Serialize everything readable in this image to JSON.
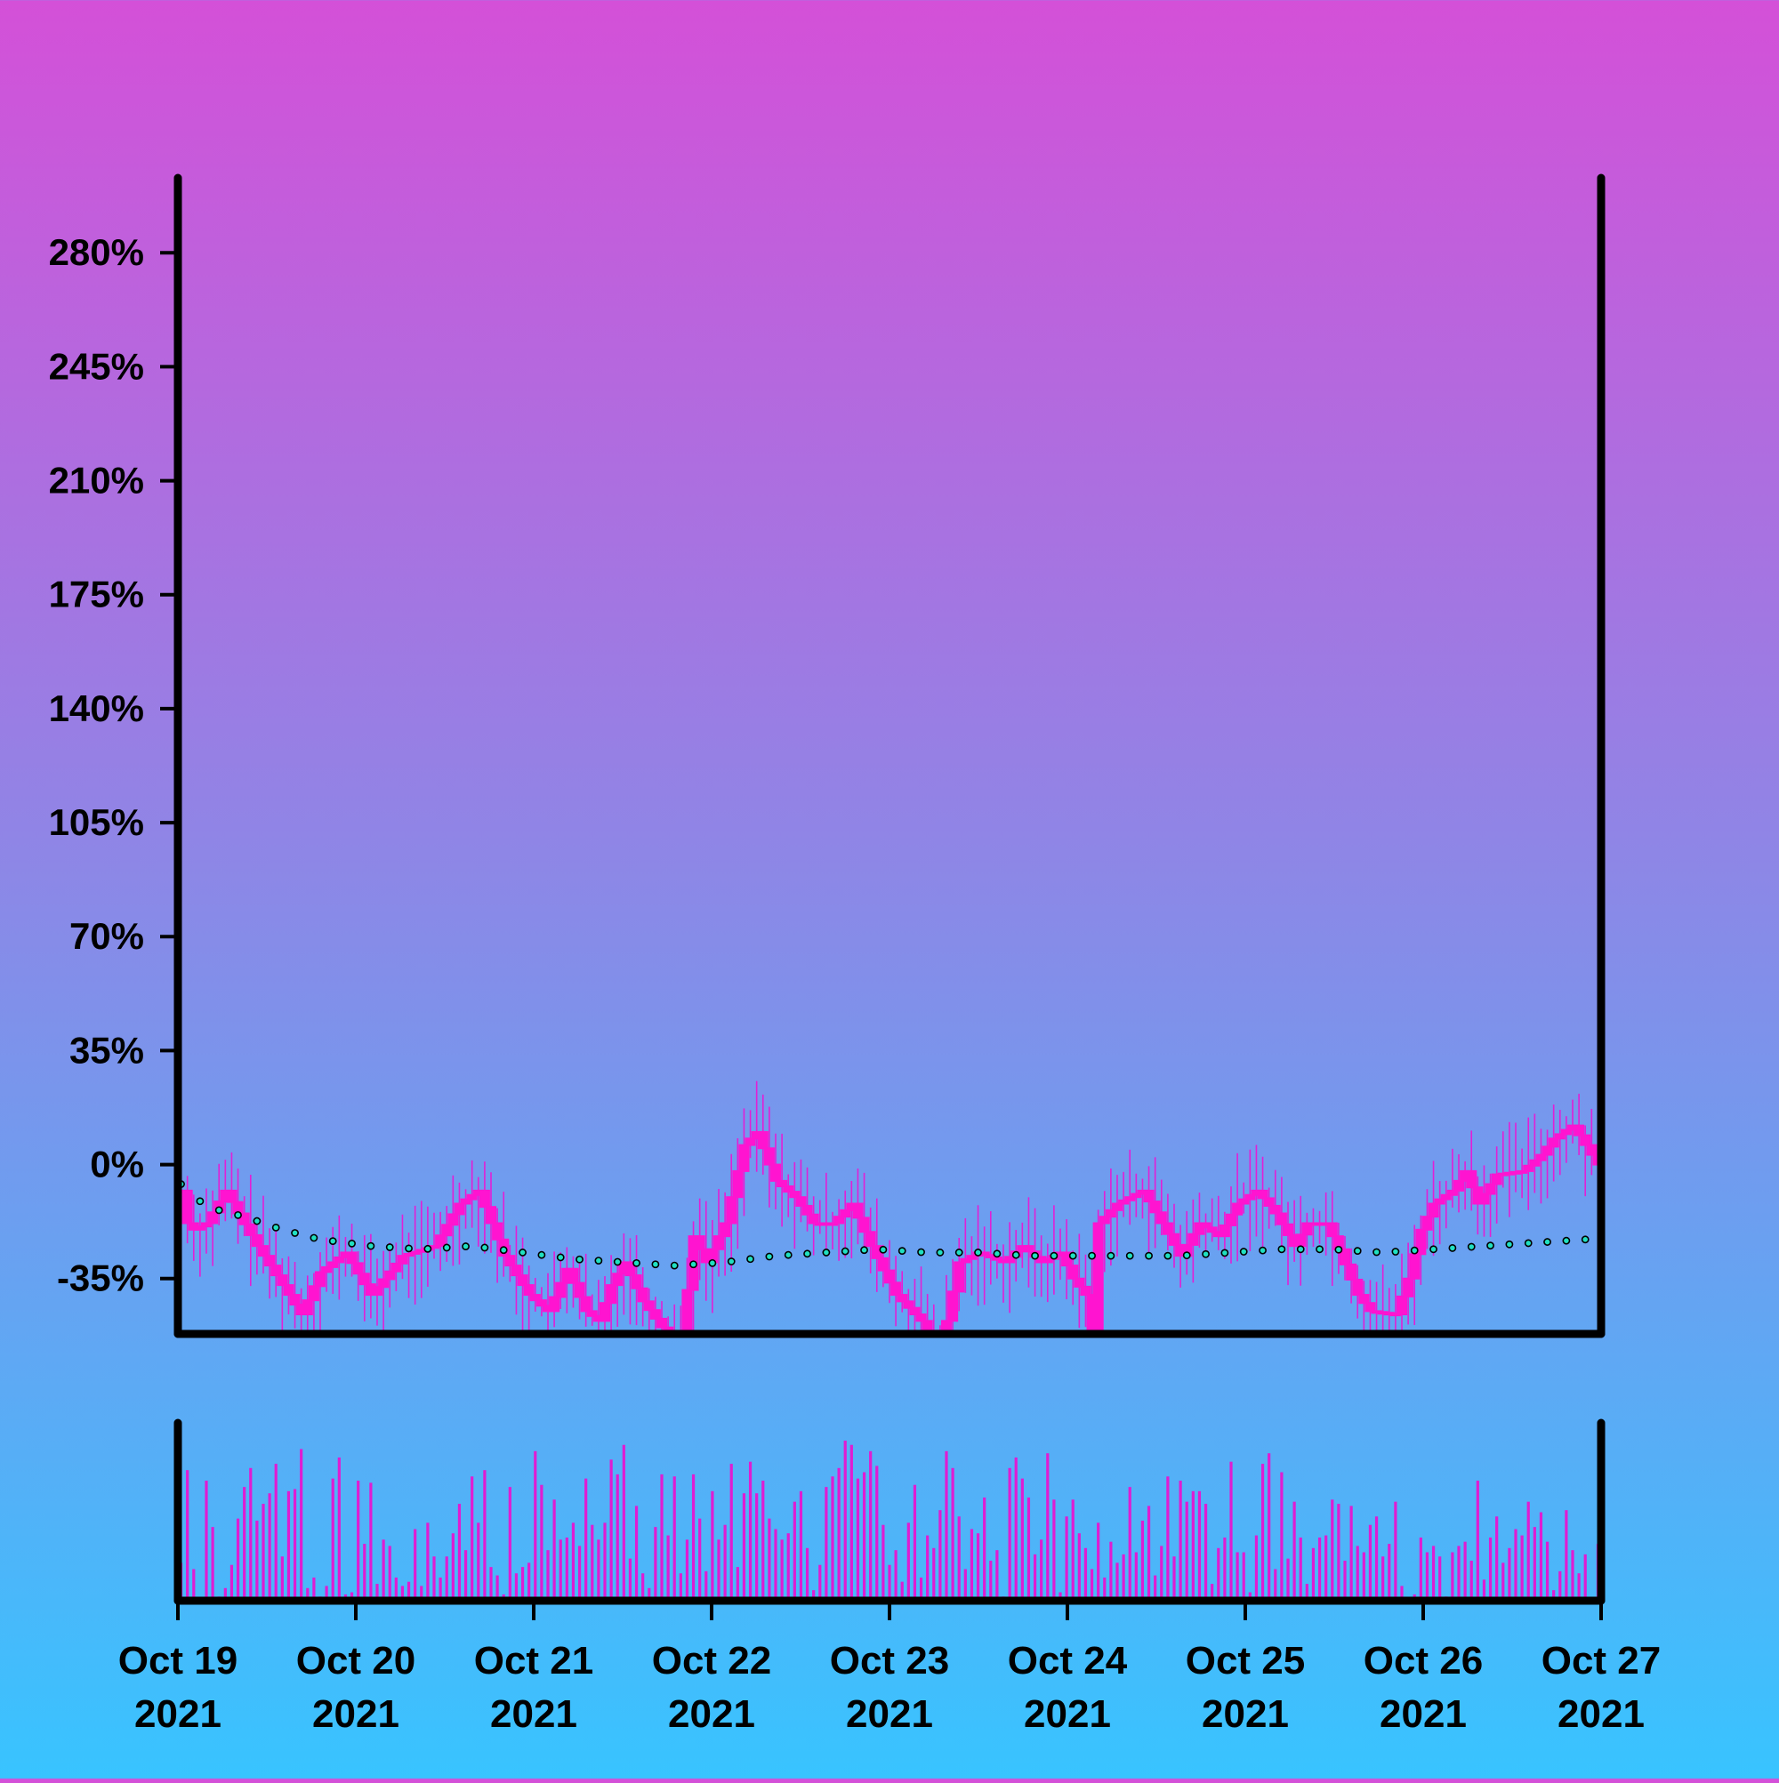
{
  "chart_data": {
    "type": "candlestick",
    "x_start": "2021-10-19",
    "x_end": "2021-10-27",
    "bars_per_day": 20,
    "y_axis": {
      "ylim": [
        -52,
        303
      ],
      "ticks": [
        -35,
        0,
        35,
        70,
        105,
        140,
        175,
        210,
        245,
        280
      ],
      "tick_labels": [
        "-35%",
        "0%",
        "35%",
        "70%",
        "105%",
        "140%",
        "175%",
        "210%",
        "245%",
        "280%"
      ]
    },
    "x_axis": {
      "ticks": [
        {
          "label_top": "Oct 19",
          "label_bottom": "2021"
        },
        {
          "label_top": "Oct 20",
          "label_bottom": "2021"
        },
        {
          "label_top": "Oct 21",
          "label_bottom": "2021"
        },
        {
          "label_top": "Oct 22",
          "label_bottom": "2021"
        },
        {
          "label_top": "Oct 23",
          "label_bottom": "2021"
        },
        {
          "label_top": "Oct 24",
          "label_bottom": "2021"
        },
        {
          "label_top": "Oct 25",
          "label_bottom": "2021"
        },
        {
          "label_top": "Oct 26",
          "label_bottom": "2021"
        },
        {
          "label_top": "Oct 27",
          "label_bottom": "2021"
        }
      ]
    },
    "price_path": [
      [
        0,
        -8
      ],
      [
        1,
        -18
      ],
      [
        2,
        -20
      ],
      [
        4,
        -18
      ],
      [
        7,
        -8
      ],
      [
        9,
        -15
      ],
      [
        12,
        -25
      ],
      [
        15,
        -34
      ],
      [
        19,
        -46
      ],
      [
        22,
        -33
      ],
      [
        26,
        -27
      ],
      [
        30,
        -40
      ],
      [
        35,
        -28
      ],
      [
        40,
        -25
      ],
      [
        44,
        -12
      ],
      [
        47,
        -8
      ],
      [
        51,
        -28
      ],
      [
        55,
        -40
      ],
      [
        58,
        -45
      ],
      [
        61,
        -32
      ],
      [
        64,
        -45
      ],
      [
        66,
        -48
      ],
      [
        68,
        -37
      ],
      [
        70,
        -30
      ],
      [
        73,
        -42
      ],
      [
        76,
        -50
      ],
      [
        79,
        -55
      ],
      [
        81,
        -22
      ],
      [
        83,
        -30
      ],
      [
        86,
        -18
      ],
      [
        89,
        6
      ],
      [
        91,
        10
      ],
      [
        94,
        -5
      ],
      [
        97,
        -10
      ],
      [
        100,
        -18
      ],
      [
        103,
        -18
      ],
      [
        106,
        -12
      ],
      [
        109,
        -25
      ],
      [
        113,
        -40
      ],
      [
        117,
        -48
      ],
      [
        120,
        -57
      ],
      [
        123,
        -30
      ],
      [
        126,
        -27
      ],
      [
        130,
        -30
      ],
      [
        133,
        -25
      ],
      [
        136,
        -30
      ],
      [
        139,
        -27
      ],
      [
        141,
        -35
      ],
      [
        143,
        -40
      ],
      [
        144,
        -58
      ],
      [
        145,
        -18
      ],
      [
        148,
        -12
      ],
      [
        152,
        -8
      ],
      [
        155,
        -18
      ],
      [
        158,
        -28
      ],
      [
        161,
        -18
      ],
      [
        164,
        -22
      ],
      [
        167,
        -12
      ],
      [
        170,
        -8
      ],
      [
        173,
        -15
      ],
      [
        176,
        -25
      ],
      [
        178,
        -18
      ],
      [
        181,
        -18
      ],
      [
        183,
        -26
      ],
      [
        186,
        -40
      ],
      [
        188,
        -45
      ],
      [
        192,
        -46
      ],
      [
        194,
        -35
      ],
      [
        196,
        -20
      ],
      [
        198,
        -12
      ],
      [
        201,
        -8
      ],
      [
        203,
        -2
      ],
      [
        205,
        -12
      ],
      [
        208,
        -3
      ],
      [
        212,
        -2
      ],
      [
        215,
        3
      ],
      [
        217,
        8
      ],
      [
        220,
        12
      ],
      [
        222,
        6
      ],
      [
        224,
        0
      ]
    ],
    "moving_average": [
      [
        0,
        -6
      ],
      [
        4,
        -13
      ],
      [
        10,
        -16
      ],
      [
        16,
        -20
      ],
      [
        22,
        -23
      ],
      [
        30,
        -25
      ],
      [
        38,
        -26
      ],
      [
        46,
        -25
      ],
      [
        54,
        -27
      ],
      [
        62,
        -29
      ],
      [
        70,
        -30
      ],
      [
        78,
        -31
      ],
      [
        86,
        -30
      ],
      [
        94,
        -28
      ],
      [
        102,
        -27
      ],
      [
        110,
        -26
      ],
      [
        118,
        -27
      ],
      [
        126,
        -27
      ],
      [
        134,
        -28
      ],
      [
        142,
        -28
      ],
      [
        150,
        -28
      ],
      [
        158,
        -28
      ],
      [
        166,
        -27
      ],
      [
        174,
        -26
      ],
      [
        182,
        -26
      ],
      [
        190,
        -27
      ],
      [
        198,
        -26
      ],
      [
        206,
        -25
      ],
      [
        214,
        -24
      ],
      [
        222,
        -23
      ]
    ],
    "volume": [
      18,
      62,
      15,
      1,
      57,
      35,
      2,
      6,
      17,
      39,
      54,
      63,
      38,
      46,
      51,
      65,
      21,
      52,
      53,
      72,
      6,
      11,
      2,
      7,
      58,
      68,
      3,
      4,
      57,
      27,
      56,
      8,
      29,
      26,
      11,
      7,
      9,
      34,
      7,
      37,
      21,
      11,
      21,
      32,
      46,
      24,
      59,
      37,
      62,
      16,
      12,
      3,
      54,
      13,
      16,
      18,
      71,
      55,
      24,
      48,
      29,
      30,
      37,
      26,
      58,
      36,
      29,
      37,
      67,
      60,
      74,
      20,
      45,
      13,
      6,
      35,
      60,
      31,
      59,
      13,
      29,
      60,
      39,
      14,
      52,
      29,
      36,
      65,
      16,
      51,
      66,
      51,
      57,
      39,
      34,
      29,
      32,
      47,
      52,
      25,
      5,
      17,
      54,
      59,
      63,
      76,
      74,
      58,
      61,
      71,
      64,
      36,
      17,
      24,
      9,
      37,
      55,
      11,
      31,
      25,
      43,
      71,
      63,
      40,
      15,
      34,
      32,
      49,
      19,
      24,
      2,
      63,
      68,
      58,
      49,
      22,
      29,
      70,
      48,
      4,
      40,
      48,
      32,
      25,
      15,
      37,
      11,
      28,
      18,
      22,
      54,
      23,
      38,
      45,
      12,
      26,
      59,
      21,
      57,
      47,
      52,
      52,
      46,
      8,
      25,
      30,
      66,
      23,
      23,
      4,
      31,
      65,
      70,
      15,
      61,
      20,
      47,
      30,
      8,
      25,
      30,
      31,
      48,
      46,
      19,
      45,
      26,
      23,
      36,
      40,
      21,
      27,
      47,
      7,
      1,
      3,
      30,
      23,
      26,
      21,
      2,
      23,
      26,
      28,
      19,
      57,
      10,
      30,
      40,
      18,
      25,
      34,
      31,
      47,
      35,
      42,
      28,
      5,
      14,
      43,
      24,
      13,
      22,
      1,
      27
    ]
  }
}
